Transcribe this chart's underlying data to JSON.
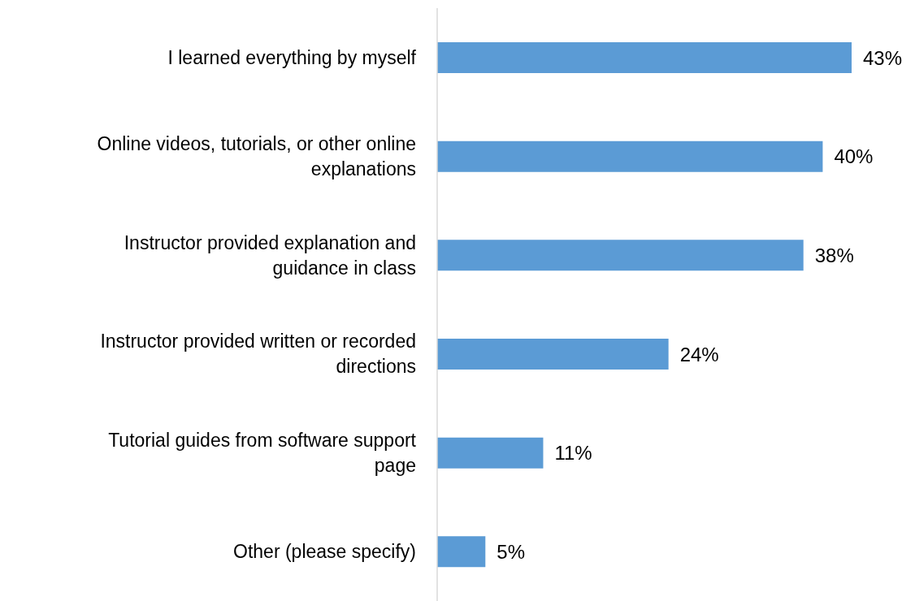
{
  "chart_data": {
    "type": "bar",
    "orientation": "horizontal",
    "categories": [
      "I learned everything by myself",
      "Online videos, tutorials, or other online explanations",
      "Instructor provided explanation and guidance in class",
      "Instructor provided written or recorded directions",
      "Tutorial guides from software support page",
      "Other (please specify)"
    ],
    "values": [
      43,
      40,
      38,
      24,
      11,
      5
    ],
    "value_labels": [
      "43%",
      "40%",
      "38%",
      "24%",
      "11%",
      "5%"
    ],
    "color": "#5b9bd5",
    "grid": false,
    "legend": false
  }
}
